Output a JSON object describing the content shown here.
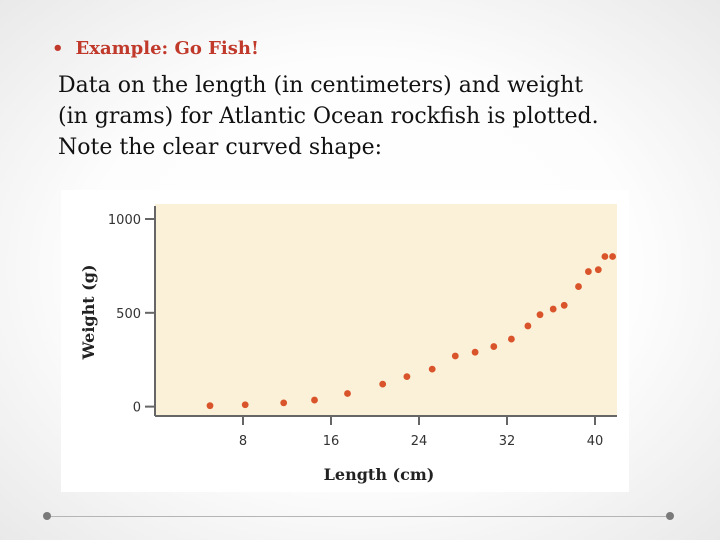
{
  "slide": {
    "bullet": "•",
    "heading": "Example: Go Fish!",
    "body_lines": [
      "Data on the length (in centimeters) and weight",
      "(in grams) for Atlantic Ocean rockfish is plotted.",
      "Note the clear curved shape:"
    ]
  },
  "colors": {
    "heading": "#c0392b",
    "plot_background": "#fbf1d8",
    "points": "#d9542a"
  },
  "chart_data": {
    "type": "scatter",
    "xlabel": "Length (cm)",
    "ylabel": "Weight (g)",
    "xlim": [
      0,
      42
    ],
    "ylim": [
      -50,
      1080
    ],
    "xticks": [
      8,
      16,
      24,
      32,
      40
    ],
    "yticks": [
      0,
      500,
      1000
    ],
    "grid": false,
    "series": [
      {
        "x": [
          5.0,
          8.2,
          11.7,
          14.5,
          17.5,
          20.7,
          22.9,
          25.2,
          27.3,
          29.1,
          30.8,
          32.4,
          33.9,
          35.0,
          36.2,
          37.2,
          38.5,
          39.4,
          40.3,
          40.9,
          41.6
        ],
        "y": [
          5.0,
          10.0,
          20.0,
          35.0,
          70.0,
          120.0,
          160.0,
          200.0,
          270.0,
          290.0,
          320.0,
          360.0,
          430.0,
          490.0,
          520.0,
          540.0,
          640.0,
          720.0,
          730.0,
          800.0,
          800.0
        ]
      }
    ]
  }
}
